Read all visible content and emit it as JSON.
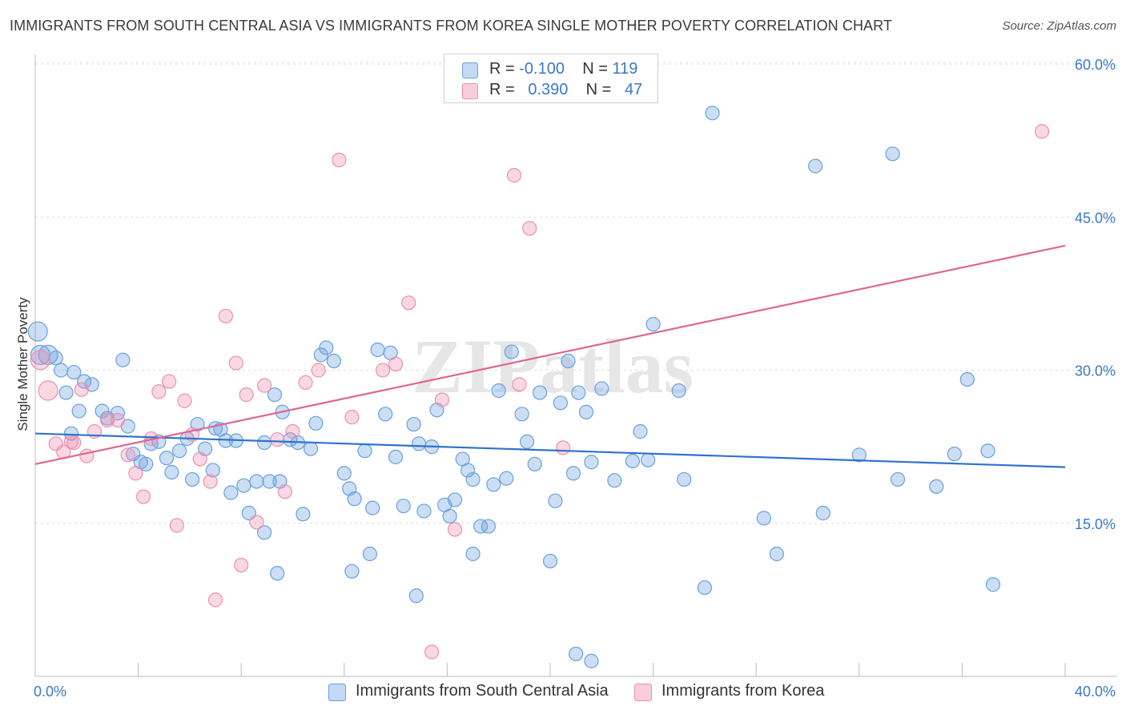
{
  "chart_data": {
    "type": "scatter",
    "title": "IMMIGRANTS FROM SOUTH CENTRAL ASIA VS IMMIGRANTS FROM KOREA SINGLE MOTHER POVERTY CORRELATION CHART",
    "source": "Source: ZipAtlas.com",
    "xlabel": "",
    "ylabel": "Single Mother Poverty",
    "xlim": [
      0,
      40
    ],
    "ylim": [
      0,
      60
    ],
    "x_tick_labels": [
      "0.0%",
      "40.0%"
    ],
    "y_ticks": [
      15,
      30,
      45,
      60
    ],
    "y_tick_labels": [
      "15.0%",
      "30.0%",
      "45.0%",
      "60.0%"
    ],
    "grid": true,
    "watermark": "ZIPatlas",
    "legend_position": "top-center",
    "colors": {
      "blue": "#6aa0e0",
      "blue_line": "#2f72cc",
      "pink": "#ee90ae",
      "pink_line": "#e0668e",
      "tick": "#3b78c8"
    },
    "series": [
      {
        "name": "Immigrants from South Central Asia",
        "color": "blue",
        "r_label": "R =",
        "r_value": "-0.100",
        "n_label": "N =",
        "n_value": "119",
        "trend": {
          "x": [
            0,
            40
          ],
          "y": [
            23.8,
            20.5
          ]
        },
        "points": [
          [
            0.1,
            33.8
          ],
          [
            0.5,
            31.5
          ],
          [
            0.8,
            31.2
          ],
          [
            1.0,
            30.0
          ],
          [
            1.2,
            27.8
          ],
          [
            1.5,
            29.8
          ],
          [
            1.9,
            28.9
          ],
          [
            2.2,
            28.6
          ],
          [
            1.7,
            26.0
          ],
          [
            2.6,
            26.0
          ],
          [
            2.8,
            25.3
          ],
          [
            3.2,
            25.8
          ],
          [
            3.4,
            31.0
          ],
          [
            3.6,
            24.5
          ],
          [
            3.8,
            21.8
          ],
          [
            4.1,
            21.0
          ],
          [
            4.3,
            20.8
          ],
          [
            4.5,
            22.8
          ],
          [
            4.8,
            23.0
          ],
          [
            5.1,
            21.4
          ],
          [
            5.3,
            20.0
          ],
          [
            5.6,
            22.1
          ],
          [
            5.9,
            23.3
          ],
          [
            6.1,
            19.3
          ],
          [
            6.3,
            24.7
          ],
          [
            6.6,
            22.3
          ],
          [
            6.9,
            20.2
          ],
          [
            7.0,
            24.3
          ],
          [
            7.2,
            24.2
          ],
          [
            7.4,
            23.1
          ],
          [
            7.6,
            18.0
          ],
          [
            7.8,
            23.1
          ],
          [
            8.1,
            18.7
          ],
          [
            8.3,
            16.0
          ],
          [
            8.6,
            19.1
          ],
          [
            8.9,
            22.9
          ],
          [
            9.1,
            19.1
          ],
          [
            9.3,
            27.6
          ],
          [
            9.5,
            19.1
          ],
          [
            9.6,
            25.9
          ],
          [
            9.9,
            23.2
          ],
          [
            10.2,
            22.9
          ],
          [
            10.4,
            15.9
          ],
          [
            10.7,
            22.3
          ],
          [
            10.9,
            24.8
          ],
          [
            11.1,
            31.5
          ],
          [
            11.3,
            32.2
          ],
          [
            11.6,
            30.9
          ],
          [
            12.0,
            19.9
          ],
          [
            12.2,
            18.4
          ],
          [
            12.4,
            17.4
          ],
          [
            12.8,
            22.1
          ],
          [
            13.1,
            16.5
          ],
          [
            13.3,
            32.0
          ],
          [
            13.6,
            25.7
          ],
          [
            13.8,
            31.7
          ],
          [
            14.0,
            21.5
          ],
          [
            14.3,
            16.7
          ],
          [
            14.7,
            24.7
          ],
          [
            14.9,
            22.8
          ],
          [
            15.1,
            16.2
          ],
          [
            15.4,
            22.5
          ],
          [
            15.6,
            26.1
          ],
          [
            15.9,
            16.8
          ],
          [
            16.1,
            15.7
          ],
          [
            16.3,
            17.3
          ],
          [
            16.6,
            21.3
          ],
          [
            16.8,
            20.2
          ],
          [
            17.0,
            19.3
          ],
          [
            17.3,
            14.7
          ],
          [
            17.6,
            14.7
          ],
          [
            17.8,
            18.8
          ],
          [
            18.0,
            28.0
          ],
          [
            18.3,
            19.4
          ],
          [
            18.5,
            31.8
          ],
          [
            18.9,
            25.7
          ],
          [
            19.1,
            23.0
          ],
          [
            19.4,
            20.8
          ],
          [
            19.6,
            27.8
          ],
          [
            20.0,
            11.3
          ],
          [
            20.2,
            17.2
          ],
          [
            20.4,
            26.8
          ],
          [
            20.7,
            30.9
          ],
          [
            20.9,
            19.9
          ],
          [
            21.1,
            27.8
          ],
          [
            21.4,
            25.9
          ],
          [
            21.6,
            21.0
          ],
          [
            22.0,
            28.2
          ],
          [
            22.5,
            19.2
          ],
          [
            23.2,
            21.1
          ],
          [
            23.5,
            24.0
          ],
          [
            23.8,
            21.2
          ],
          [
            24.0,
            34.5
          ],
          [
            25.0,
            28.0
          ],
          [
            25.2,
            19.3
          ],
          [
            26.0,
            8.7
          ],
          [
            26.3,
            55.2
          ],
          [
            28.3,
            15.5
          ],
          [
            28.8,
            12.0
          ],
          [
            30.3,
            50.0
          ],
          [
            30.6,
            16.0
          ],
          [
            32.0,
            21.7
          ],
          [
            33.3,
            51.2
          ],
          [
            33.5,
            19.3
          ],
          [
            35.0,
            18.6
          ],
          [
            35.7,
            21.8
          ],
          [
            36.2,
            29.1
          ],
          [
            37.0,
            22.1
          ],
          [
            37.2,
            9.0
          ],
          [
            14.8,
            7.9
          ],
          [
            9.4,
            10.1
          ],
          [
            12.3,
            10.3
          ],
          [
            13.0,
            12.0
          ],
          [
            17.0,
            12.0
          ],
          [
            21.0,
            2.2
          ],
          [
            21.6,
            1.5
          ],
          [
            0.2,
            31.5
          ],
          [
            1.4,
            23.8
          ],
          [
            8.9,
            14.1
          ]
        ]
      },
      {
        "name": "Immigrants from Korea",
        "color": "pink",
        "r_label": "R =",
        "r_value": "0.390",
        "n_label": "N =",
        "n_value": "47",
        "trend": {
          "x": [
            0,
            40
          ],
          "y": [
            20.8,
            42.2
          ]
        },
        "points": [
          [
            0.2,
            31.0
          ],
          [
            0.5,
            28.0
          ],
          [
            0.8,
            22.8
          ],
          [
            1.1,
            22.0
          ],
          [
            1.4,
            23.0
          ],
          [
            1.8,
            28.1
          ],
          [
            2.0,
            21.6
          ],
          [
            2.3,
            24.0
          ],
          [
            2.8,
            25.1
          ],
          [
            3.2,
            25.1
          ],
          [
            3.6,
            21.7
          ],
          [
            3.9,
            19.9
          ],
          [
            4.2,
            17.6
          ],
          [
            4.5,
            23.3
          ],
          [
            4.8,
            27.9
          ],
          [
            5.2,
            28.9
          ],
          [
            5.5,
            14.8
          ],
          [
            5.8,
            27.0
          ],
          [
            6.1,
            23.7
          ],
          [
            6.4,
            21.3
          ],
          [
            6.8,
            19.1
          ],
          [
            7.0,
            7.5
          ],
          [
            7.4,
            35.3
          ],
          [
            7.8,
            30.7
          ],
          [
            8.0,
            10.9
          ],
          [
            8.2,
            27.6
          ],
          [
            8.6,
            15.1
          ],
          [
            8.9,
            28.5
          ],
          [
            9.4,
            23.2
          ],
          [
            9.7,
            18.1
          ],
          [
            10.0,
            24.0
          ],
          [
            10.5,
            28.8
          ],
          [
            11.0,
            30.0
          ],
          [
            11.8,
            50.6
          ],
          [
            12.3,
            25.4
          ],
          [
            13.5,
            30.0
          ],
          [
            14.0,
            30.6
          ],
          [
            14.5,
            36.6
          ],
          [
            15.4,
            2.4
          ],
          [
            15.8,
            27.1
          ],
          [
            16.3,
            14.4
          ],
          [
            18.6,
            49.1
          ],
          [
            18.8,
            28.6
          ],
          [
            19.2,
            43.9
          ],
          [
            20.5,
            22.4
          ],
          [
            39.1,
            53.4
          ],
          [
            1.5,
            22.9
          ]
        ]
      }
    ]
  }
}
